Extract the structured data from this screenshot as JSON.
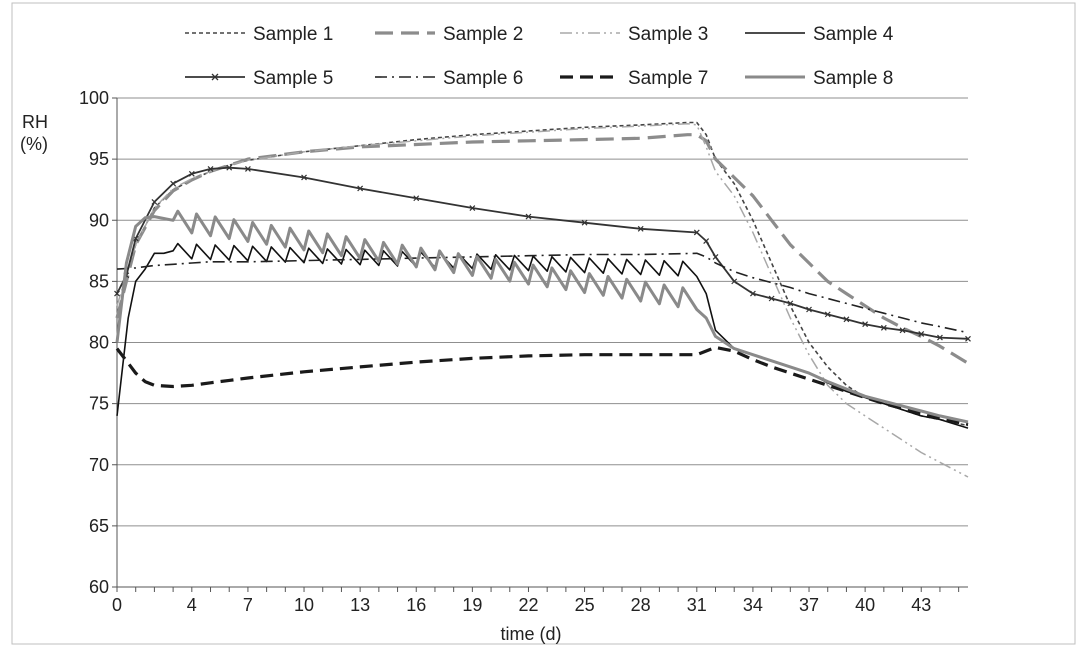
{
  "chart_data": {
    "type": "line",
    "title": "",
    "xlabel": "time (d)",
    "ylabel": "RH",
    "ylabel_unit": "(%)",
    "xlim": [
      0,
      45.5
    ],
    "ylim": [
      60,
      100
    ],
    "x_ticks": [
      0,
      4,
      7,
      10,
      13,
      16,
      19,
      22,
      25,
      28,
      31,
      34,
      37,
      40,
      43
    ],
    "y_ticks": [
      60,
      65,
      70,
      75,
      80,
      85,
      90,
      95,
      100
    ],
    "grid": true,
    "legend_position": "top",
    "series": [
      {
        "name": "Sample 1",
        "color": "#444444",
        "style": "short-dash",
        "x": [
          0,
          0.5,
          1,
          2,
          3,
          4,
          5,
          6,
          7,
          10,
          13,
          16,
          19,
          22,
          25,
          28,
          30.5,
          31,
          31.5,
          32,
          33,
          34,
          35,
          36,
          37,
          38,
          39,
          40,
          41,
          42,
          43,
          44,
          45.5
        ],
        "y": [
          84,
          85.5,
          88,
          91,
          92.5,
          93.3,
          94,
          94.5,
          94.9,
          95.6,
          96.1,
          96.6,
          97,
          97.3,
          97.6,
          97.8,
          98,
          98,
          97,
          95,
          93,
          90,
          86.5,
          83,
          80,
          78,
          76.5,
          75.5,
          75,
          74.5,
          74,
          73.7,
          73.2
        ]
      },
      {
        "name": "Sample 2",
        "color": "#8c8c8c",
        "style": "long-dash",
        "x": [
          0,
          0.5,
          1,
          2,
          3,
          4,
          5,
          6,
          7,
          10,
          13,
          16,
          19,
          22,
          25,
          28,
          30.5,
          31,
          31.5,
          32,
          33,
          34,
          35,
          36,
          37,
          38,
          39,
          40,
          41,
          42,
          43,
          44,
          45.5
        ],
        "y": [
          82,
          85,
          88,
          90.8,
          92.4,
          93.3,
          94,
          94.5,
          95,
          95.6,
          96,
          96.2,
          96.4,
          96.5,
          96.6,
          96.7,
          97,
          97,
          96.5,
          95,
          93.5,
          92,
          90,
          88,
          86.5,
          85,
          84,
          83,
          82,
          81.2,
          80.5,
          79.7,
          78.3
        ]
      },
      {
        "name": "Sample 3",
        "color": "#a8a8a8",
        "style": "dash-dot-dot",
        "x": [
          0,
          0.5,
          1,
          2,
          3,
          4,
          5,
          6,
          7,
          10,
          13,
          16,
          19,
          22,
          25,
          28,
          30.5,
          31,
          31.5,
          32,
          33,
          34,
          35,
          36,
          37,
          38,
          39,
          40,
          41,
          42,
          43,
          44,
          45.5
        ],
        "y": [
          83,
          85.5,
          88,
          91,
          92.6,
          93.4,
          94,
          94.5,
          94.9,
          95.6,
          96.1,
          96.5,
          96.9,
          97.2,
          97.5,
          97.7,
          97.9,
          97.8,
          96,
          94,
          92,
          89,
          85.5,
          82,
          79,
          76.5,
          75,
          74,
          73,
          72,
          71,
          70.2,
          69
        ]
      },
      {
        "name": "Sample 4",
        "color": "#111111",
        "style": "solid-sawtooth",
        "x": [
          0,
          0.3,
          0.6,
          1,
          1.5,
          2,
          2.5,
          3,
          31,
          31.5,
          32,
          33,
          34,
          35,
          36,
          37,
          38,
          39,
          40,
          41,
          42,
          43,
          44,
          45.5
        ],
        "y": [
          74,
          78,
          82,
          85,
          86,
          87.3,
          87.3,
          87.5,
          86,
          84,
          81,
          79.5,
          79,
          78.5,
          78,
          77.5,
          76.7,
          76,
          75.5,
          75,
          74.5,
          74,
          73.7,
          73
        ],
        "sawtooth": {
          "from": 3,
          "to": 31,
          "period": 1,
          "amplitude": 1.2
        }
      },
      {
        "name": "Sample 5",
        "color": "#333333",
        "style": "solid-marker",
        "x": [
          0,
          0.5,
          1,
          2,
          3,
          4,
          5,
          6,
          7,
          10,
          13,
          16,
          19,
          22,
          25,
          28,
          31,
          31.5,
          32,
          33,
          34,
          35,
          36,
          37,
          38,
          39,
          40,
          41,
          42,
          43,
          44,
          45.5
        ],
        "y": [
          84,
          85.5,
          88.5,
          91.5,
          93,
          93.8,
          94.2,
          94.3,
          94.2,
          93.5,
          92.6,
          91.8,
          91,
          90.3,
          89.8,
          89.3,
          89,
          88.3,
          87,
          85,
          84,
          83.6,
          83.2,
          82.7,
          82.3,
          81.9,
          81.5,
          81.2,
          81,
          80.7,
          80.4,
          80.3
        ]
      },
      {
        "name": "Sample 6",
        "color": "#222222",
        "style": "dash-dot",
        "x": [
          0,
          1,
          2,
          3,
          4,
          5,
          6,
          7,
          10,
          13,
          16,
          19,
          22,
          25,
          28,
          31,
          31.5,
          32,
          33,
          34,
          35,
          36,
          37,
          38,
          39,
          40,
          41,
          42,
          43,
          44,
          45.5
        ],
        "y": [
          86,
          86.1,
          86.3,
          86.4,
          86.5,
          86.6,
          86.6,
          86.6,
          86.7,
          86.8,
          86.9,
          87,
          87.1,
          87.2,
          87.2,
          87.3,
          87,
          86.5,
          85.8,
          85.3,
          84.9,
          84.5,
          84,
          83.6,
          83.2,
          82.8,
          82.4,
          82,
          81.6,
          81.3,
          80.8
        ]
      },
      {
        "name": "Sample 7",
        "color": "#1a1a1a",
        "style": "heavy-dash",
        "x": [
          0,
          0.5,
          1,
          1.5,
          2,
          3,
          4,
          5,
          6,
          7,
          10,
          13,
          16,
          19,
          22,
          25,
          28,
          31,
          32,
          33,
          34,
          35,
          36,
          37,
          38,
          39,
          40,
          41,
          42,
          43,
          44,
          45.5
        ],
        "y": [
          79.5,
          78.5,
          77.5,
          76.8,
          76.5,
          76.4,
          76.5,
          76.7,
          76.9,
          77.1,
          77.6,
          78,
          78.4,
          78.7,
          78.9,
          79,
          79,
          79,
          79.6,
          79.3,
          78.6,
          78,
          77.5,
          77,
          76.5,
          76,
          75.5,
          75,
          74.6,
          74.2,
          73.8,
          73.3
        ]
      },
      {
        "name": "Sample 8",
        "color": "#8a8a8a",
        "style": "solid-sawtooth",
        "x": [
          0,
          0.5,
          1,
          1.5,
          2,
          3,
          31,
          31.5,
          32,
          33,
          34,
          35,
          36,
          37,
          38,
          39,
          40,
          41,
          42,
          43,
          44,
          45.5
        ],
        "y": [
          80,
          86.5,
          89.5,
          90.2,
          90.3,
          90,
          83.5,
          82,
          80.5,
          79.5,
          79,
          78.5,
          78,
          77.5,
          76.8,
          76.2,
          75.6,
          75.2,
          74.8,
          74.4,
          74,
          73.5
        ],
        "sawtooth": {
          "from": 3,
          "to": 31,
          "period": 1,
          "amplitude": 1.6
        }
      }
    ]
  }
}
